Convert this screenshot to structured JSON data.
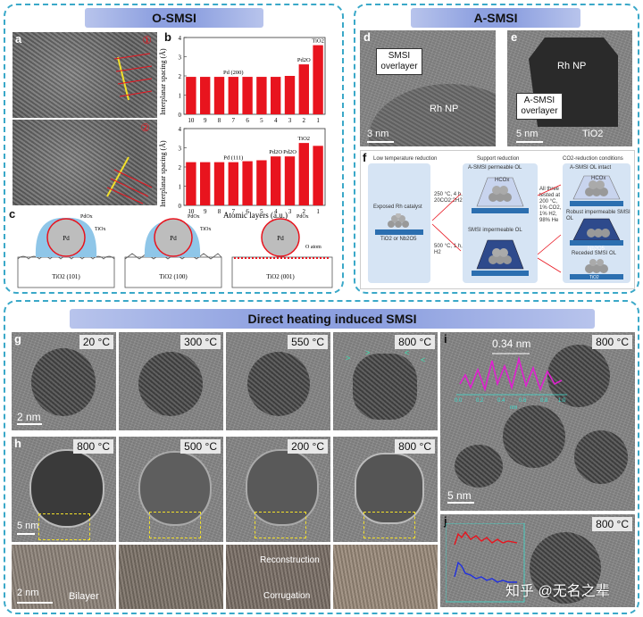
{
  "sections": {
    "osmsi": {
      "title": "O-SMSI"
    },
    "asmsi": {
      "title": "A-SMSI"
    },
    "direct": {
      "title": "Direct heating induced SMSI"
    }
  },
  "panel_labels": {
    "a": "a",
    "b": "b",
    "c": "c",
    "d": "d",
    "e": "e",
    "f": "f",
    "g": "g",
    "h": "h",
    "i": "i",
    "j": "j"
  },
  "panel_a": {
    "marker1": "①",
    "marker2": "②"
  },
  "chart_data": [
    {
      "type": "bar",
      "title": "",
      "xlabel": "",
      "ylabel": "Interplanar spacing (Å)",
      "categories": [
        "10",
        "9",
        "8",
        "7",
        "6",
        "5",
        "4",
        "3",
        "2",
        "1"
      ],
      "values": [
        1.95,
        1.95,
        1.95,
        1.95,
        1.95,
        1.95,
        1.95,
        2.0,
        2.6,
        3.6
      ],
      "ylim": [
        0,
        4
      ],
      "yticks": [
        0,
        1,
        2,
        3,
        4
      ],
      "annotations": [
        {
          "category": "7",
          "text": "Pd (200)"
        },
        {
          "category": "2",
          "text": "Pd2O"
        },
        {
          "category": "1",
          "text": "TiO2"
        }
      ],
      "color": "#e8141e"
    },
    {
      "type": "bar",
      "title": "",
      "xlabel": "Atomic layers (a.u.)",
      "ylabel": "Interplanar spacing (Å)",
      "categories": [
        "10",
        "9",
        "8",
        "7",
        "6",
        "5",
        "4",
        "3",
        "2",
        "1"
      ],
      "values": [
        2.25,
        2.25,
        2.25,
        2.25,
        2.3,
        2.35,
        2.55,
        2.55,
        3.25,
        3.1
      ],
      "ylim": [
        0,
        4
      ],
      "yticks": [
        0,
        1,
        2,
        3,
        4
      ],
      "annotations": [
        {
          "category": "7",
          "text": "Pd (111)"
        },
        {
          "category": "4",
          "text": "Pd2O"
        },
        {
          "category": "3",
          "text": "Pd2O"
        },
        {
          "category": "2",
          "text": "TiO2"
        }
      ],
      "color": "#e8141e"
    }
  ],
  "panel_c": {
    "items": [
      {
        "pd": "Pd",
        "pdox": "PdOx",
        "tiox": "TiOx",
        "support": "TiO2 (101)"
      },
      {
        "pd": "Pd",
        "pdox": "PdOx",
        "tiox": "TiOx",
        "support": "TiO2 (100)"
      },
      {
        "pd": "Pd",
        "pdox": "PdOx",
        "oatom": "O atom",
        "support": "TiO2 (001)"
      }
    ]
  },
  "panel_d": {
    "callout": "SMSI overlayer",
    "np": "Rh NP",
    "scale": "3 nm"
  },
  "panel_e": {
    "np": "Rh NP",
    "callout": "A-SMSI overlayer",
    "scale": "5 nm",
    "support": "TiO2"
  },
  "panel_f": {
    "col1": "Low temperature reduction",
    "col2": "Support reduction",
    "col3": "CO2-reduction conditions",
    "exposed": "Exposed Rh catalyst",
    "substrate": "TiO2 or Nb2O5",
    "cond1": "250 °C, 4 h, 20CO2:2H2",
    "cond2": "500 °C, 1 h, H2",
    "perm": "A-SMSI permeable OL",
    "imperm": "SMSI impermeable OL",
    "tested": "All three tested at 200 °C, 1% CO2, 1% H2, 98% He",
    "intact": "A-SMSI OL intact",
    "robust": "Robust impermeable SMSI OL",
    "receded": "Receded SMSI OL",
    "hco": "HCOx",
    "sub_nb": "Nb2O5",
    "sub_ti": "TiO2"
  },
  "panel_g": {
    "temps": [
      "20 °C",
      "300 °C",
      "550 °C",
      "800 °C"
    ],
    "scale": "2 nm"
  },
  "panel_h": {
    "temps": [
      "800 °C",
      "500 °C",
      "200 °C",
      "800 °C"
    ],
    "scale1": "5 nm",
    "scale2": "2 nm",
    "bilayer": "Bilayer",
    "reconstruction": "Reconstruction",
    "corrugation": "Corrugation"
  },
  "panel_i": {
    "temp": "800 °C",
    "spacing": "0.34 nm",
    "scale": "5 nm",
    "axis": "nm",
    "ticks": [
      "0.0",
      "0.2",
      "0.4",
      "0.6",
      "0.8",
      "1.0"
    ]
  },
  "panel_j": {
    "temp": "800 °C"
  },
  "watermark": "知乎 @无名之辈"
}
